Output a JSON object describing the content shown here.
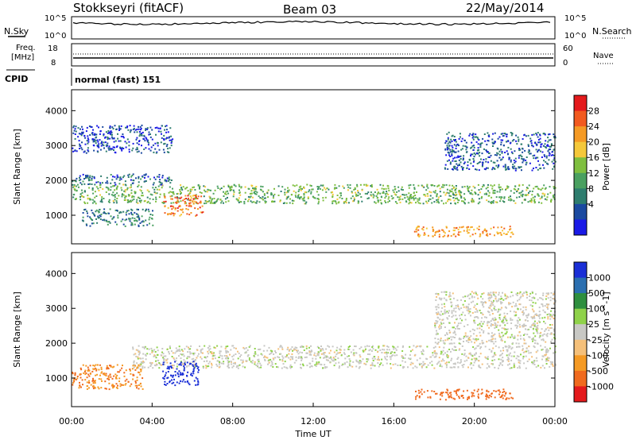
{
  "header": {
    "station": "Stokkseyri (fitACF)",
    "beam": "Beam 03",
    "date": "22/May/2014"
  },
  "nsky_panel": {
    "left_label": "N.Sky",
    "right_label": "N.Search",
    "tick_top": "10^5",
    "tick_bottom": "10^0"
  },
  "freq_panel": {
    "label_line1": "Freq.",
    "label_line2": "[MHz]",
    "left_ticks": [
      "18",
      "8"
    ],
    "right_ticks": [
      "60",
      "0"
    ],
    "right_label": "Nave"
  },
  "cpid_panel": {
    "label": "CPID",
    "mode": "normal (fast) 151"
  },
  "x_axis": {
    "label": "Time UT",
    "ticks": [
      "00:00",
      "04:00",
      "08:00",
      "12:00",
      "16:00",
      "20:00",
      "00:00"
    ]
  },
  "chart_data": [
    {
      "type": "heatmap",
      "name": "power",
      "xlabel": "",
      "ylabel": "Slant Range [km]",
      "ylim": [
        180,
        4600
      ],
      "yticks": [
        1000,
        2000,
        3000,
        4000
      ],
      "xlim_hours": [
        0,
        24
      ],
      "colorbar": {
        "label": "Power [dB]",
        "ticks": [
          "28",
          "24",
          "20",
          "16",
          "12",
          "8",
          "4"
        ],
        "colors": [
          "#e41a1c",
          "#f25a1f",
          "#f59a24",
          "#f5c83a",
          "#7fbf3f",
          "#4aa060",
          "#2e7d6e",
          "#1b4aa0",
          "#1a1ae6"
        ]
      },
      "echo_regions": [
        {
          "range_km": [
            1350,
            1900
          ],
          "hours": [
            0,
            24
          ],
          "power_db": 14
        },
        {
          "range_km": [
            1900,
            2200
          ],
          "hours": [
            0,
            5
          ],
          "power_db": 6
        },
        {
          "range_km": [
            1000,
            1600
          ],
          "hours": [
            4.5,
            6.5
          ],
          "power_db": 26
        },
        {
          "range_km": [
            700,
            1200
          ],
          "hours": [
            0.5,
            4
          ],
          "power_db": 8
        },
        {
          "range_km": [
            400,
            700
          ],
          "hours": [
            17,
            22
          ],
          "power_db": 24
        },
        {
          "range_km": [
            2300,
            3400
          ],
          "hours": [
            18.5,
            24
          ],
          "power_db": 5
        },
        {
          "range_km": [
            2800,
            3600
          ],
          "hours": [
            0,
            5
          ],
          "power_db": 4
        }
      ]
    },
    {
      "type": "heatmap",
      "name": "velocity",
      "xlabel": "Time UT",
      "ylabel": "Slant Range [km]",
      "ylim": [
        180,
        4600
      ],
      "yticks": [
        1000,
        2000,
        3000,
        4000
      ],
      "xlim_hours": [
        0,
        24
      ],
      "colorbar": {
        "label": "Velocity [m s^-1]",
        "ticks": [
          "1000",
          "500",
          "100",
          "25",
          "-25",
          "-100",
          "-500",
          "-1000"
        ],
        "colors": [
          "#1a2fd6",
          "#2b6fb0",
          "#2f8f3f",
          "#8fd24a",
          "#c8c8c4",
          "#f5c07a",
          "#f59a24",
          "#f06a1e",
          "#e41a1c"
        ]
      },
      "echo_regions": [
        {
          "range_km": [
            1300,
            1950
          ],
          "hours": [
            3,
            24
          ],
          "velocity_ms": 0
        },
        {
          "range_km": [
            700,
            1400
          ],
          "hours": [
            0,
            3.5
          ],
          "velocity_ms": -300
        },
        {
          "range_km": [
            800,
            1500
          ],
          "hours": [
            4.5,
            6.3
          ],
          "velocity_ms": 900
        },
        {
          "range_km": [
            400,
            700
          ],
          "hours": [
            17,
            22
          ],
          "velocity_ms": -400
        },
        {
          "range_km": [
            2000,
            3500
          ],
          "hours": [
            18,
            24
          ],
          "velocity_ms": 0
        }
      ]
    }
  ]
}
